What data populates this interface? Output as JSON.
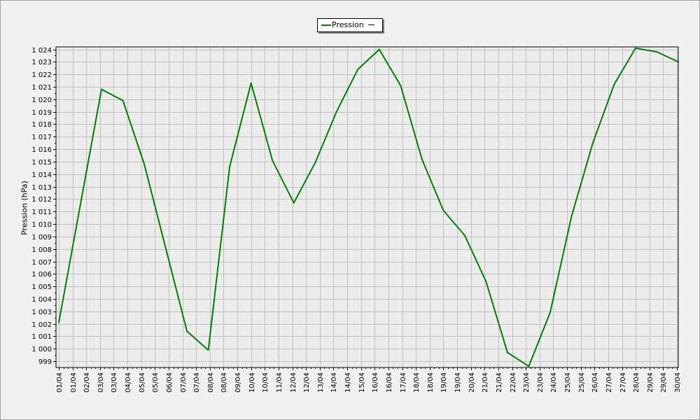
{
  "chart_data": {
    "type": "line",
    "title": "",
    "xlabel": "",
    "ylabel": "Pression (hPa)",
    "ylim": [
      998.5,
      1024.2
    ],
    "grid": true,
    "legend_position": "top-center",
    "yticks": [
      999,
      1000,
      1001,
      1002,
      1003,
      1004,
      1005,
      1006,
      1007,
      1008,
      1009,
      1010,
      1011,
      1012,
      1013,
      1014,
      1015,
      1016,
      1017,
      1018,
      1019,
      1020,
      1021,
      1022,
      1023,
      1024
    ],
    "ytick_labels": [
      "999",
      "1 000",
      "1 001",
      "1 002",
      "1 003",
      "1 004",
      "1 005",
      "1 006",
      "1 007",
      "1 008",
      "1 009",
      "1 010",
      "1 011",
      "1 012",
      "1 013",
      "1 014",
      "1 015",
      "1 016",
      "1 017",
      "1 018",
      "1 019",
      "1 020",
      "1 021",
      "1 022",
      "1 023",
      "1 024"
    ],
    "x_tick_labels": [
      "01/04",
      "01/04",
      "02/04",
      "03/04",
      "03/04",
      "04/04",
      "05/04",
      "05/04",
      "06/04",
      "07/04",
      "07/04",
      "08/04",
      "08/04",
      "09/04",
      "10/04",
      "10/04",
      "11/04",
      "12/04",
      "12/04",
      "13/04",
      "14/04",
      "14/04",
      "15/04",
      "16/04",
      "16/04",
      "17/04",
      "18/04",
      "18/04",
      "19/04",
      "19/04",
      "20/04",
      "21/04",
      "21/04",
      "22/04",
      "23/04",
      "23/04",
      "24/04",
      "25/04",
      "25/04",
      "26/04",
      "27/04",
      "27/04",
      "28/04",
      "29/04",
      "29/04",
      "30/04"
    ],
    "series": [
      {
        "name": "Pression",
        "color": "#008000",
        "x": [
          "01/04",
          "03/04",
          "04/04",
          "05/04",
          "06/04",
          "07/04",
          "08/04",
          "09/04",
          "10/04",
          "11/04",
          "12/04",
          "13/04",
          "14/04",
          "15/04",
          "16/04",
          "17/04",
          "18/04",
          "19/04",
          "20/04",
          "21/04",
          "22/04",
          "23/04",
          "24/04",
          "25/04",
          "26/04",
          "27/04",
          "28/04",
          "29/04",
          "30/04"
        ],
        "values": [
          1002.1,
          1020.8,
          1019.9,
          1014.8,
          1008.1,
          1001.4,
          999.9,
          1014.6,
          1021.3,
          1015.1,
          1011.7,
          1014.9,
          1019.0,
          1022.4,
          1024.0,
          1021.1,
          1015.2,
          1011.1,
          1009.1,
          1005.4,
          999.7,
          998.6,
          1002.9,
          1010.6,
          1016.5,
          1021.2,
          1024.1,
          1023.8,
          1023.0
        ]
      }
    ]
  },
  "legend": {
    "label": "Pression"
  }
}
